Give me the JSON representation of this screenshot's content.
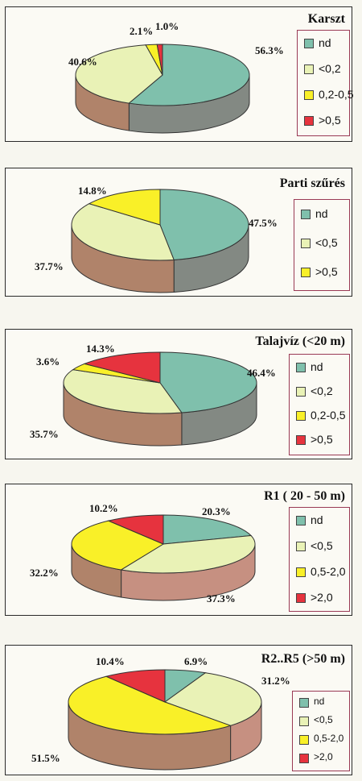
{
  "colors": {
    "nd": "#7fc0ac",
    "lt_low": "#e9f2b6",
    "mid": "#f9f028",
    "high": "#e6333e",
    "side_green": "#838983",
    "side_brown": "#b0836a",
    "side_salmon": "#c69081"
  },
  "chart_data": [
    {
      "type": "pie",
      "title": "Karszt",
      "categories": [
        "nd",
        "<0,2",
        "0,2-0,5",
        ">0,5"
      ],
      "values": [
        56.3,
        40.6,
        2.1,
        1.0
      ],
      "labels": [
        "56.3%",
        "40.6%",
        "2.1%",
        "1.0%"
      ],
      "legend": "right"
    },
    {
      "type": "pie",
      "title": "Parti szűrés",
      "categories": [
        "nd",
        "<0,5",
        ">0,5"
      ],
      "values": [
        47.5,
        37.7,
        14.8
      ],
      "labels": [
        "47.5%",
        "37.7%",
        "14.8%"
      ],
      "legend": "right"
    },
    {
      "type": "pie",
      "title": "Talajvíz (<20 m)",
      "categories": [
        "nd",
        "<0,2",
        "0,2-0,5",
        ">0,5"
      ],
      "values": [
        46.4,
        35.7,
        3.6,
        14.3
      ],
      "labels": [
        "46.4%",
        "35.7%",
        "3.6%",
        "14.3%"
      ],
      "legend": "right"
    },
    {
      "type": "pie",
      "title": "R1 ( 20 - 50 m)",
      "categories": [
        "nd",
        "<0,5",
        "0,5-2,0",
        ">2,0"
      ],
      "values": [
        20.3,
        37.3,
        32.2,
        10.2
      ],
      "labels": [
        "20.3%",
        "37.3%",
        "32.2%",
        "10.2%"
      ],
      "legend": "right"
    },
    {
      "type": "pie",
      "title": "R2..R5 (>50 m)",
      "categories": [
        "nd",
        "<0,5",
        "0,5-2,0",
        ">2,0"
      ],
      "values": [
        6.9,
        31.2,
        51.5,
        10.4
      ],
      "labels": [
        "6.9%",
        "31.2%",
        "51.5%",
        "10.4%"
      ],
      "legend": "right"
    }
  ]
}
